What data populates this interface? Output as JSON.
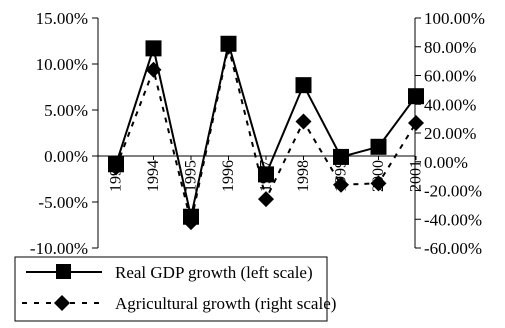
{
  "chart_data": {
    "type": "line",
    "categories": [
      "1993",
      "1994",
      "1995",
      "1996",
      "1997",
      "1998",
      "1999",
      "2000",
      "2001"
    ],
    "grid": false,
    "legend_position": "bottom",
    "left_axis": {
      "ylim": [
        -10,
        15
      ],
      "ticks": [
        -10,
        -5,
        0,
        5,
        10,
        15
      ],
      "tick_labels": [
        "-10.00%",
        "-5.00%",
        "0.00%",
        "5.00%",
        "10.00%",
        "15.00%"
      ]
    },
    "right_axis": {
      "ylim": [
        -60,
        100
      ],
      "ticks": [
        -60,
        -40,
        -20,
        0,
        20,
        40,
        60,
        80,
        100
      ],
      "tick_labels": [
        "-60.00%",
        "-40.00%",
        "-20.00%",
        "0.00%",
        "20.00%",
        "40.00%",
        "60.00%",
        "80.00%",
        "100.00%"
      ]
    },
    "series": [
      {
        "name": "Real GDP growth (left scale)",
        "axis": "left",
        "style": "solid",
        "marker": "square",
        "color": "#000000",
        "values": [
          -0.9,
          11.7,
          -6.6,
          12.2,
          -2.0,
          7.7,
          -0.1,
          1.0,
          6.5
        ]
      },
      {
        "name": "Agricultural growth (right scale)",
        "axis": "right",
        "style": "dashed",
        "marker": "diamond",
        "color": "#000000",
        "values": [
          -4,
          64,
          -42,
          80,
          -26,
          28,
          -16,
          -15,
          27
        ]
      }
    ]
  }
}
